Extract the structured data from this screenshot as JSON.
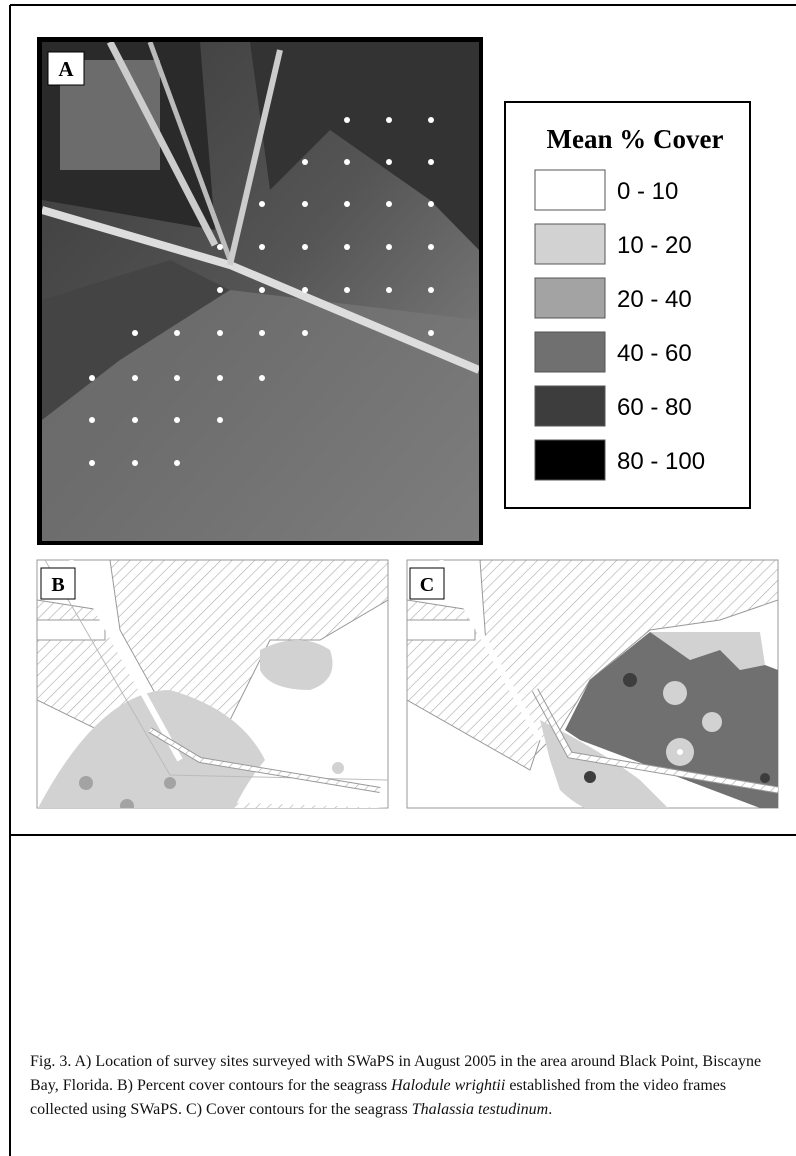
{
  "figure": {
    "panels": [
      {
        "label": "A"
      },
      {
        "label": "B"
      },
      {
        "label": "C"
      }
    ],
    "legend": {
      "title": "Mean % Cover",
      "items": [
        {
          "label": "0 - 10",
          "color": "#ffffff"
        },
        {
          "label": "10 - 20",
          "color": "#d2d2d2"
        },
        {
          "label": "20 - 40",
          "color": "#a3a3a3"
        },
        {
          "label": "40 - 60",
          "color": "#707070"
        },
        {
          "label": "60 - 80",
          "color": "#3d3d3d"
        },
        {
          "label": "80 - 100",
          "color": "#000000"
        }
      ]
    },
    "caption": [
      {
        "text": "Fig. 3. A) Location of survey sites surveyed with SWaPS in August 2005 in the area around Black Point, Biscayne Bay, Florida. B) Percent cover contours for the seagrass ",
        "italic": false
      },
      {
        "text": "Halodule wrightii",
        "italic": true
      },
      {
        "text": " established from the video frames collected using SWaPS. C) Cover contours for the seagrass ",
        "italic": false
      },
      {
        "text": "Thalassia testudinum",
        "italic": true
      },
      {
        "text": ".",
        "italic": false
      }
    ]
  }
}
